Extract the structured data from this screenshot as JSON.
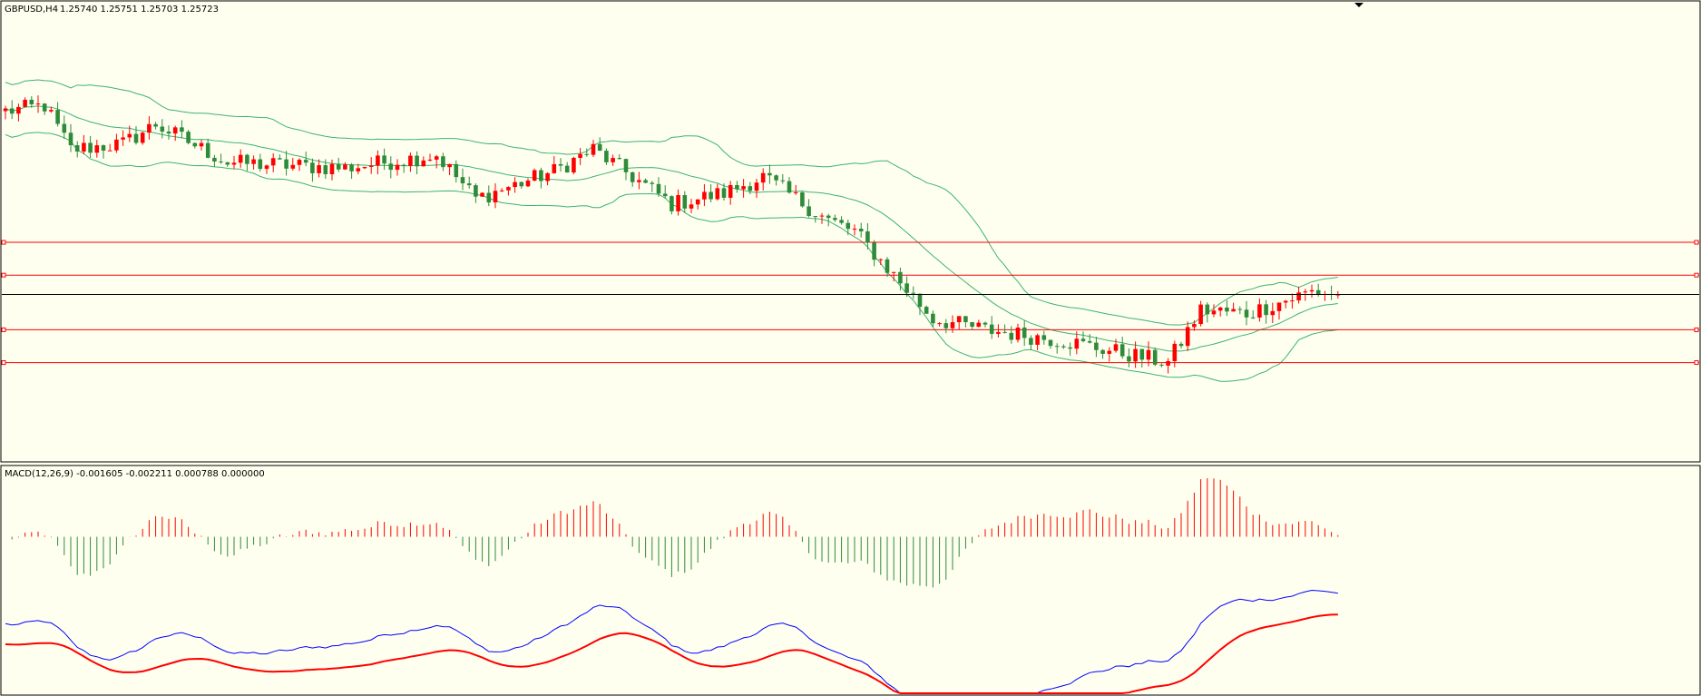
{
  "header": {
    "symbol": "GBPUSD,H4",
    "ohlc": "1.25740 1.25751 1.25703 1.25723"
  },
  "indicator": {
    "label": "MACD(12,26,9) -0.001605 -0.002211 0.000788 0.000000"
  },
  "colors": {
    "background": "#fffff0",
    "bull": "#2e8b3a",
    "bear": "#ff0000",
    "bands": "#3cb371",
    "level": "#ff0000",
    "bid": "#000000",
    "macd_line": "#0000ff",
    "signal_line": "#ff0000",
    "hist_pos": "#ff0000",
    "hist_neg": "#2e8b3a"
  },
  "chart_data": [
    {
      "type": "candlestick",
      "title": "GBPUSD,H4",
      "candles": {
        "count": 205,
        "open_first": 1.274,
        "close_last": 1.25723,
        "path_keypoints": [
          [
            0,
            1.274
          ],
          [
            6,
            1.2745
          ],
          [
            10,
            1.2705
          ],
          [
            18,
            1.271
          ],
          [
            23,
            1.2728
          ],
          [
            34,
            1.2693
          ],
          [
            52,
            1.2688
          ],
          [
            66,
            1.27
          ],
          [
            72,
            1.266
          ],
          [
            84,
            1.2685
          ],
          [
            90,
            1.2705
          ],
          [
            102,
            1.2655
          ],
          [
            110,
            1.2665
          ],
          [
            116,
            1.268
          ],
          [
            126,
            1.264
          ],
          [
            130,
            1.263
          ],
          [
            142,
            1.255
          ],
          [
            150,
            1.254
          ],
          [
            162,
            1.253
          ],
          [
            178,
            1.251
          ],
          [
            183,
            1.2558
          ],
          [
            190,
            1.2555
          ],
          [
            200,
            1.2575
          ],
          [
            205,
            1.2572
          ]
        ]
      },
      "bollinger": {
        "period": 20,
        "deviation": 2.0
      },
      "horizontal_levels": [
        1.262,
        1.259,
        1.254,
        1.251
      ],
      "bid": 1.25723,
      "ylim": [
        1.242,
        1.284
      ]
    },
    {
      "type": "macd",
      "params": [
        12,
        26,
        9
      ],
      "macd_value": -0.001605,
      "signal_value": -0.002211,
      "histogram_value": 0.000788,
      "ylim": [
        -0.0045,
        0.002
      ]
    }
  ]
}
